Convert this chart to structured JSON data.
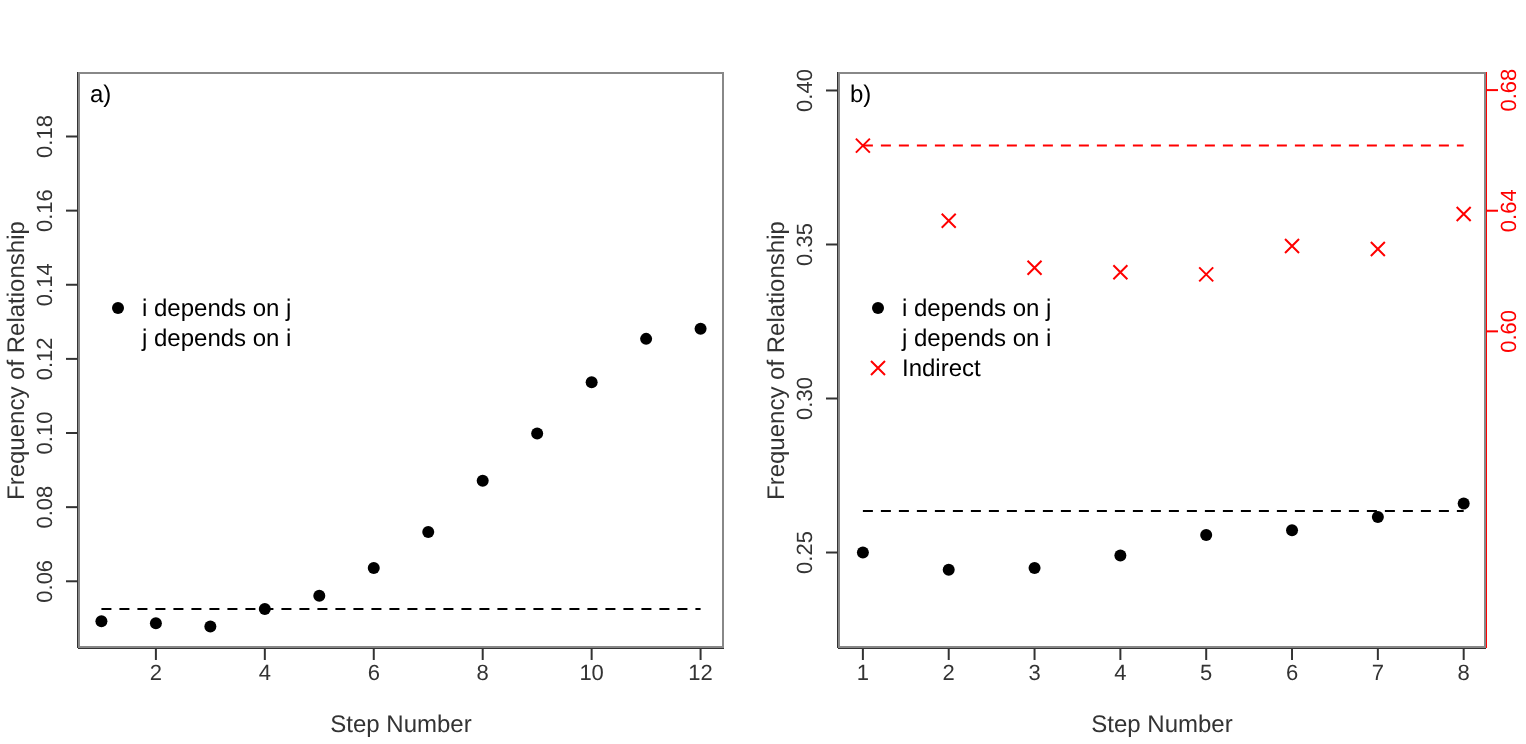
{
  "chart_data": [
    {
      "type": "scatter",
      "annotations": [
        "a)"
      ],
      "xlabel": "Step Number",
      "ylabel": "Frequency of Relationship",
      "x": [
        1,
        2,
        3,
        4,
        5,
        6,
        7,
        8,
        9,
        10,
        11,
        12
      ],
      "xlim": [
        0.57,
        12.43
      ],
      "xticks": [
        2,
        4,
        6,
        8,
        10,
        12
      ],
      "ylim": [
        0.042,
        0.1974
      ],
      "yticks": [
        0.06,
        0.08,
        {
          "value": 0.1,
          "label": "0.10"
        },
        0.12,
        0.14,
        0.16,
        0.18
      ],
      "marker": "circle",
      "legend": "left",
      "series": [
        {
          "name": "i depends on j",
          "color": "#000000",
          "values": [
            0.0492,
            0.0487,
            0.0478,
            0.0525,
            0.0561,
            0.0636,
            0.0733,
            0.0871,
            0.0999,
            0.1137,
            0.1254,
            0.1281
          ]
        },
        {
          "name": "j depends on i",
          "values": [
            null,
            null,
            null,
            null,
            null,
            null,
            null,
            null,
            null,
            null,
            null,
            null
          ]
        }
      ],
      "ref_lines": [
        {
          "axis": "y",
          "value": 0.0525,
          "color": "#000000",
          "line_style": "dashed"
        }
      ]
    },
    {
      "type": "scatter",
      "annotations": [
        "b)"
      ],
      "xlabel": "Step Number",
      "ylabel": "Frequency of Relationship",
      "x": [
        1,
        2,
        3,
        4,
        5,
        6,
        7,
        8
      ],
      "xlim": [
        0.71,
        8.26
      ],
      "xticks": [
        1,
        2,
        3,
        4,
        5,
        6,
        7,
        8
      ],
      "ylim": [
        0.219,
        0.406
      ],
      "yticks": [
        0.25,
        {
          "value": 0.3,
          "label": "0.30"
        },
        0.35,
        {
          "value": 0.4,
          "label": "0.40"
        }
      ],
      "y2lim": [
        0.495,
        0.686
      ],
      "y2ticks": [
        {
          "value": 0.6,
          "label": "0.60"
        },
        0.64,
        0.68
      ],
      "marker": "circle",
      "legend": "left",
      "series": [
        {
          "name": "i depends on j",
          "color": "#000000",
          "values": [
            0.25,
            0.2444,
            0.245,
            0.249,
            0.2557,
            0.2572,
            0.2615,
            0.2659
          ]
        },
        {
          "name": "j depends on i",
          "values": [
            null,
            null,
            null,
            null,
            null,
            null,
            null,
            null
          ]
        },
        {
          "name": "Indirect",
          "color": "#ff0000",
          "axis": "y2",
          "marker": "cross",
          "values": [
            0.6616,
            0.6367,
            0.6211,
            0.6196,
            0.6189,
            0.6283,
            0.6273,
            0.6389
          ]
        }
      ],
      "ref_lines": [
        {
          "axis": "y",
          "value": 0.2635,
          "color": "#000000",
          "line_style": "dashed"
        },
        {
          "axis": "y2",
          "value": 0.6616,
          "color": "#ff0000",
          "line_style": "dashed"
        }
      ]
    }
  ]
}
